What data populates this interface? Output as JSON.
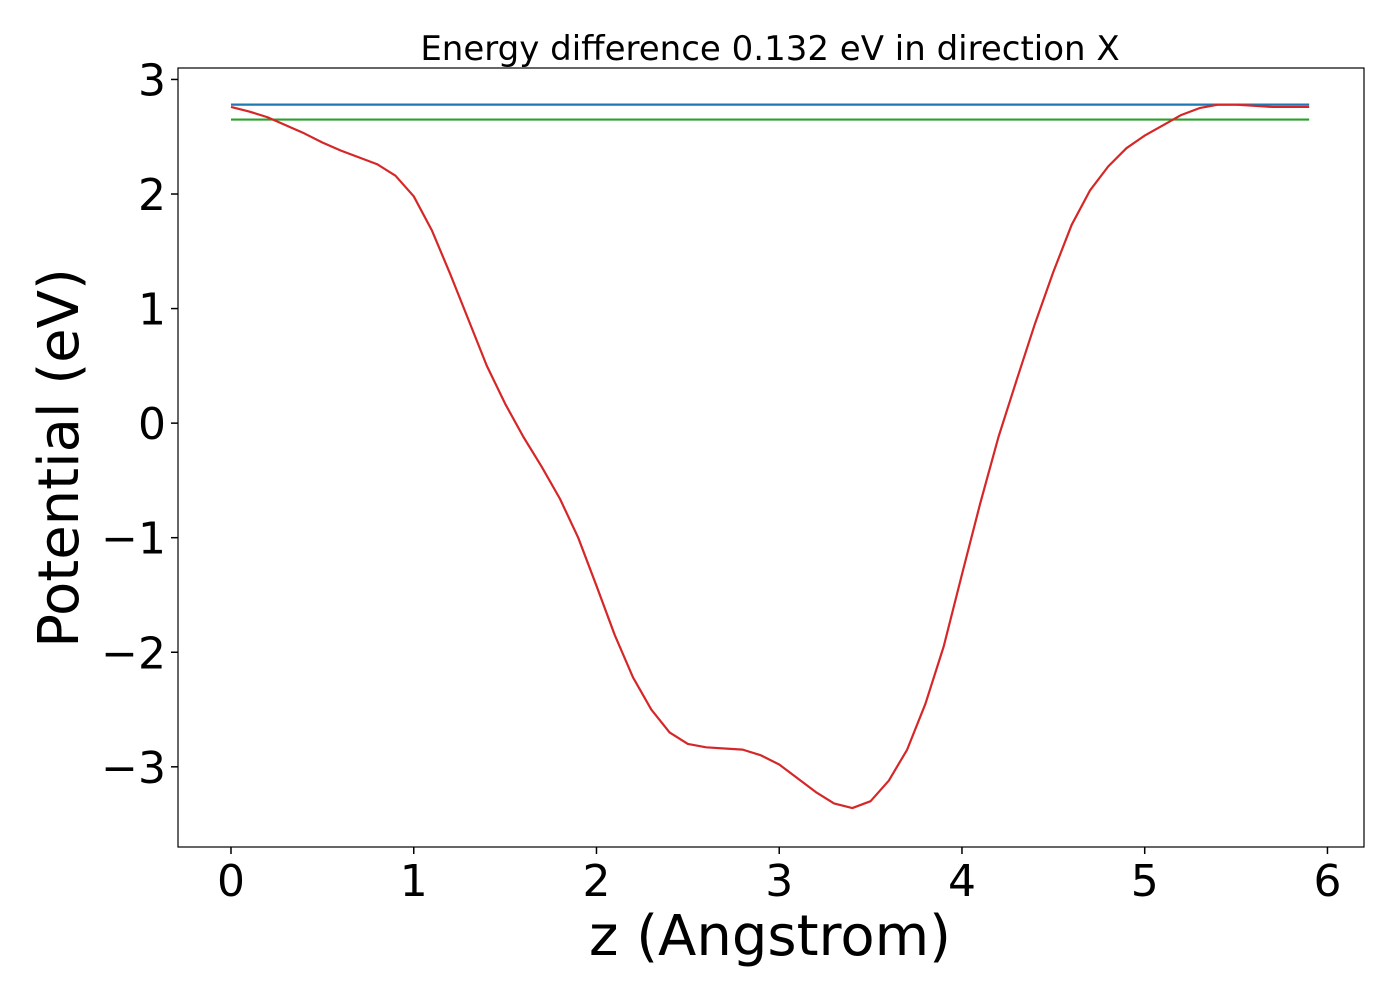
{
  "chart_data": {
    "type": "line",
    "title": "Energy difference 0.132 eV in direction X",
    "xlabel": "z (Angstrom)",
    "ylabel": "Potential (eV)",
    "xlim": [
      -0.29,
      6.2
    ],
    "ylim": [
      -3.7,
      3.1
    ],
    "xticks": [
      0,
      1,
      2,
      3,
      4,
      5,
      6
    ],
    "xtick_labels": [
      "0",
      "1",
      "2",
      "3",
      "4",
      "5",
      "6"
    ],
    "yticks": [
      3,
      2,
      1,
      0,
      -1,
      -2,
      -3
    ],
    "ytick_labels": [
      "3",
      "2",
      "1",
      "0",
      "−1",
      "−2",
      "−3"
    ],
    "grid": false,
    "legend": "none",
    "series": [
      {
        "color": "#1f77b4",
        "x": [
          0,
          5.9
        ],
        "y": [
          2.78,
          2.78
        ]
      },
      {
        "color": "#2ca02c",
        "x": [
          0,
          5.9
        ],
        "y": [
          2.65,
          2.65
        ]
      },
      {
        "color": "#d62728",
        "x": [
          0,
          0.1,
          0.2,
          0.3,
          0.4,
          0.5,
          0.6,
          0.7,
          0.8,
          0.9,
          1.0,
          1.1,
          1.2,
          1.3,
          1.4,
          1.5,
          1.6,
          1.7,
          1.8,
          1.9,
          2.0,
          2.1,
          2.2,
          2.3,
          2.4,
          2.5,
          2.6,
          2.7,
          2.8,
          2.9,
          3.0,
          3.1,
          3.2,
          3.3,
          3.4,
          3.5,
          3.6,
          3.7,
          3.8,
          3.9,
          4.0,
          4.1,
          4.2,
          4.3,
          4.4,
          4.5,
          4.6,
          4.7,
          4.8,
          4.9,
          5.0,
          5.1,
          5.2,
          5.3,
          5.4,
          5.5,
          5.6,
          5.7,
          5.75,
          5.8,
          5.9
        ],
        "y": [
          2.76,
          2.72,
          2.67,
          2.6,
          2.53,
          2.45,
          2.38,
          2.32,
          2.26,
          2.16,
          1.98,
          1.68,
          1.3,
          0.9,
          0.5,
          0.17,
          -0.12,
          -0.38,
          -0.66,
          -1.0,
          -1.42,
          -1.85,
          -2.22,
          -2.5,
          -2.7,
          -2.8,
          -2.83,
          -2.84,
          -2.85,
          -2.9,
          -2.98,
          -3.1,
          -3.22,
          -3.32,
          -3.36,
          -3.3,
          -3.12,
          -2.85,
          -2.45,
          -1.95,
          -1.32,
          -0.7,
          -0.12,
          0.38,
          0.87,
          1.32,
          1.73,
          2.03,
          2.24,
          2.4,
          2.51,
          2.6,
          2.69,
          2.75,
          2.78,
          2.78,
          2.77,
          2.76,
          2.76,
          2.76,
          2.76
        ]
      }
    ]
  }
}
